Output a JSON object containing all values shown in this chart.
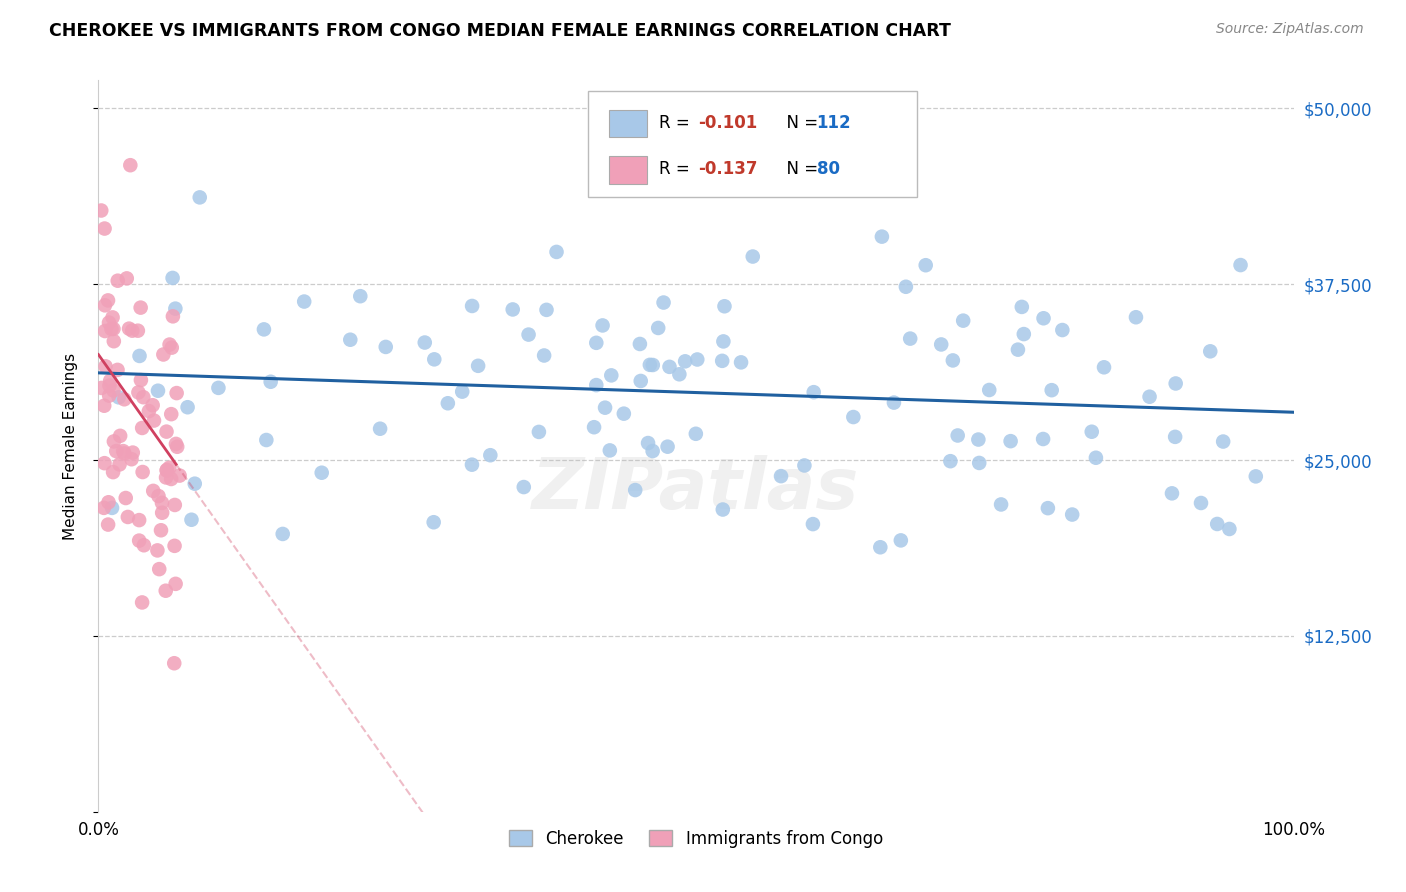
{
  "title": "CHEROKEE VS IMMIGRANTS FROM CONGO MEDIAN FEMALE EARNINGS CORRELATION CHART",
  "source": "Source: ZipAtlas.com",
  "ylabel": "Median Female Earnings",
  "cherokee_color": "#a8c8e8",
  "cherokee_line_color": "#2060a0",
  "congo_color": "#f0a0b8",
  "congo_line_color": "#d04060",
  "background_color": "#ffffff",
  "watermark": "ZIPatlas",
  "xlim": [
    0,
    1
  ],
  "ylim": [
    0,
    52000
  ],
  "cherokee_r": "-0.101",
  "cherokee_n": "112",
  "congo_r": "-0.137",
  "congo_n": "80",
  "cherokee_label": "Cherokee",
  "congo_label": "Immigrants from Congo",
  "r_color": "#c0392b",
  "n_color": "#1a6bc4",
  "yticks": [
    0,
    12500,
    25000,
    37500,
    50000
  ],
  "ytick_labels": [
    "",
    "$12,500",
    "$25,000",
    "$37,500",
    "$50,000"
  ]
}
